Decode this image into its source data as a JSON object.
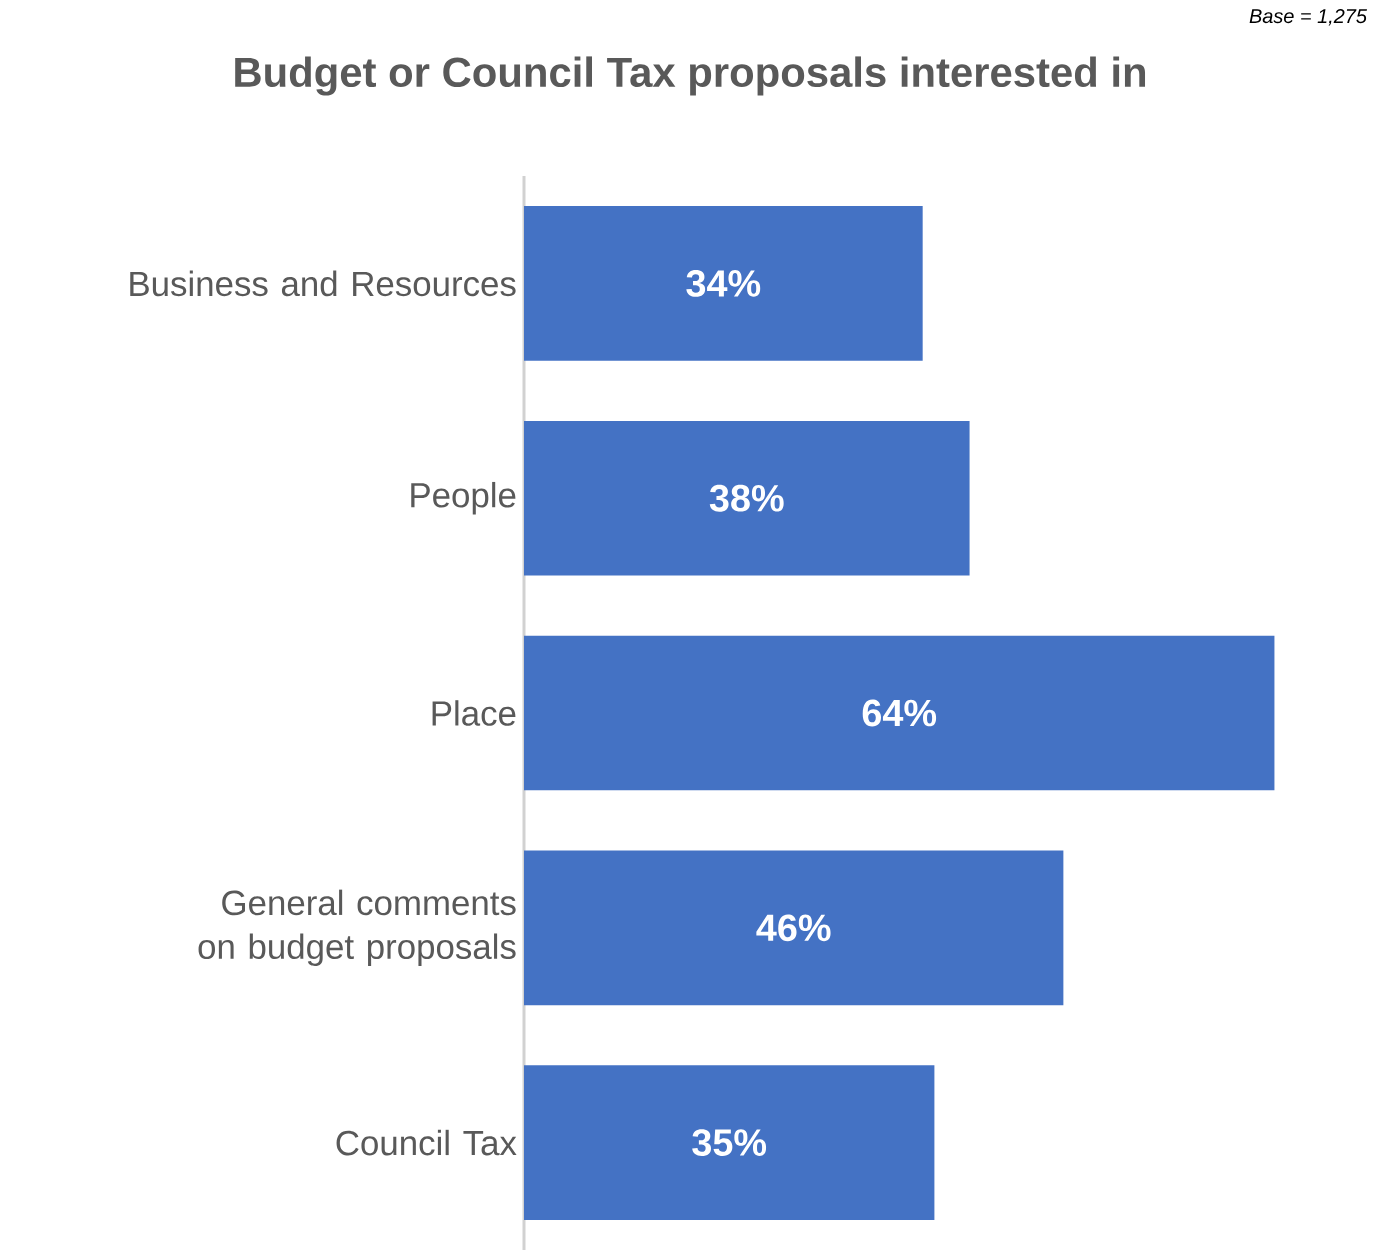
{
  "chart_data": {
    "type": "bar",
    "orientation": "horizontal",
    "title": "Budget or Council Tax proposals  interested in",
    "annotations": [
      "Base = 1,275"
    ],
    "categories": [
      "Business and Resources",
      "People",
      "Place",
      "General comments on budget proposals",
      "Council Tax"
    ],
    "values": [
      34,
      38,
      64,
      46,
      35
    ],
    "value_labels": [
      "34%",
      "38%",
      "64%",
      "46%",
      "35%"
    ],
    "color": "#4472c4",
    "tick_labels": "y"
  }
}
